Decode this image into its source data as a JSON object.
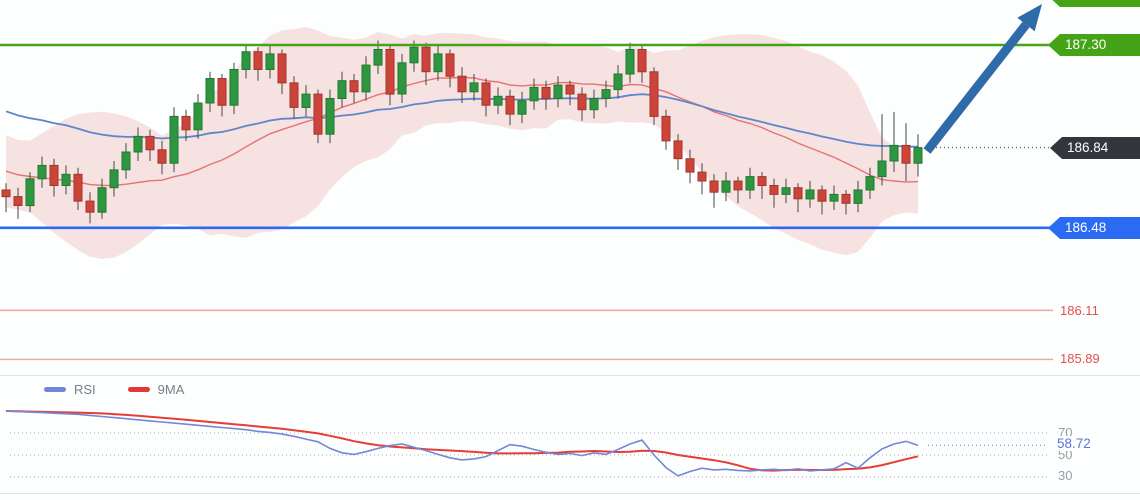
{
  "price_labels": {
    "resistance": "187.30",
    "current": "186.84",
    "support": "186.48",
    "pivot1": "186.11",
    "pivot2": "185.89"
  },
  "rsi_ui": {
    "legend": [
      {
        "label": "RSI"
      },
      {
        "label": "9MA"
      }
    ],
    "levels": {
      "overbought": "70",
      "mid": "50",
      "oversold": "30"
    },
    "current": "58.72"
  },
  "chart_data": {
    "type": "candlestick",
    "panels": [
      "price",
      "rsi"
    ],
    "colors": {
      "up": "#2e9640",
      "up_border": "#1e7b2c",
      "down": "#cc443a",
      "down_border": "#a33529",
      "wick": "#454545",
      "band": "#f3caca",
      "basis": "#e57373",
      "ema": "#5f86c8",
      "resistance": "#45a317",
      "support": "#2b6bf3",
      "current_bg": "#33363c",
      "level_line": "#f0a5a2",
      "level_text": "#e0524e",
      "rsi_line": "#7388d6",
      "rsi_ma": "#e53d38",
      "grid_dot": "#b8bcc8",
      "rsi_current_dot": "#8092d8",
      "price_dot": "#60646a",
      "divider": "#e2e4ea",
      "arrow": "#2e6ba8"
    },
    "price_panel": {
      "levels": {
        "resistance": 187.3,
        "support": 186.48,
        "pivot1": 186.11,
        "pivot2": 185.89,
        "current_price": 186.84
      },
      "bollinger": {
        "period": 20,
        "stdev_mult": 2
      },
      "ema_period": 45,
      "y_axis": {
        "visible_min": 185.7,
        "visible_max": 187.5
      },
      "candles": [
        [
          186.65,
          186.68,
          186.55,
          186.62
        ],
        [
          186.62,
          186.66,
          186.52,
          186.58
        ],
        [
          186.58,
          186.73,
          186.55,
          186.7
        ],
        [
          186.7,
          186.8,
          186.66,
          186.76
        ],
        [
          186.76,
          186.79,
          186.62,
          186.67
        ],
        [
          186.67,
          186.76,
          186.63,
          186.72
        ],
        [
          186.72,
          186.75,
          186.56,
          186.6
        ],
        [
          186.6,
          186.64,
          186.5,
          186.55
        ],
        [
          186.55,
          186.7,
          186.52,
          186.66
        ],
        [
          186.66,
          186.78,
          186.62,
          186.74
        ],
        [
          186.74,
          186.86,
          186.7,
          186.82
        ],
        [
          186.82,
          186.93,
          186.78,
          186.89
        ],
        [
          186.89,
          186.92,
          186.78,
          186.83
        ],
        [
          186.83,
          186.87,
          186.72,
          186.77
        ],
        [
          186.77,
          187.02,
          186.73,
          186.98
        ],
        [
          186.98,
          187.01,
          186.87,
          186.92
        ],
        [
          186.92,
          187.08,
          186.88,
          187.04
        ],
        [
          187.04,
          187.18,
          187.0,
          187.15
        ],
        [
          187.15,
          187.17,
          186.98,
          187.03
        ],
        [
          187.03,
          187.22,
          186.99,
          187.19
        ],
        [
          187.19,
          187.3,
          187.15,
          187.27
        ],
        [
          187.27,
          187.29,
          187.14,
          187.19
        ],
        [
          187.19,
          187.3,
          187.15,
          187.26
        ],
        [
          187.26,
          187.28,
          187.08,
          187.13
        ],
        [
          187.13,
          187.16,
          186.97,
          187.02
        ],
        [
          187.02,
          187.12,
          186.98,
          187.08
        ],
        [
          187.08,
          187.1,
          186.86,
          186.9
        ],
        [
          186.9,
          187.1,
          186.86,
          187.06
        ],
        [
          187.06,
          187.18,
          187.02,
          187.14
        ],
        [
          187.14,
          187.17,
          187.04,
          187.09
        ],
        [
          187.09,
          187.25,
          187.05,
          187.21
        ],
        [
          187.21,
          187.32,
          187.17,
          187.28
        ],
        [
          187.28,
          187.3,
          187.03,
          187.08
        ],
        [
          187.08,
          187.26,
          187.04,
          187.22
        ],
        [
          187.22,
          187.32,
          187.18,
          187.29
        ],
        [
          187.29,
          187.31,
          187.12,
          187.18
        ],
        [
          187.18,
          187.3,
          187.14,
          187.26
        ],
        [
          187.26,
          187.28,
          187.11,
          187.16
        ],
        [
          187.16,
          187.2,
          187.04,
          187.09
        ],
        [
          187.09,
          187.17,
          187.05,
          187.13
        ],
        [
          187.13,
          187.15,
          186.98,
          187.03
        ],
        [
          187.03,
          187.11,
          186.99,
          187.07
        ],
        [
          187.07,
          187.1,
          186.94,
          186.99
        ],
        [
          186.99,
          187.09,
          186.95,
          187.05
        ],
        [
          187.05,
          187.15,
          187.01,
          187.11
        ],
        [
          187.11,
          187.14,
          187.01,
          187.06
        ],
        [
          187.06,
          187.16,
          187.02,
          187.12
        ],
        [
          187.12,
          187.14,
          187.03,
          187.08
        ],
        [
          187.08,
          187.11,
          186.96,
          187.01
        ],
        [
          187.01,
          187.1,
          186.97,
          187.06
        ],
        [
          187.06,
          187.14,
          187.02,
          187.1
        ],
        [
          187.1,
          187.21,
          187.06,
          187.17
        ],
        [
          187.17,
          187.31,
          187.13,
          187.28
        ],
        [
          187.28,
          187.3,
          187.13,
          187.18
        ],
        [
          187.18,
          187.2,
          186.94,
          186.98
        ],
        [
          186.98,
          187.01,
          186.83,
          186.87
        ],
        [
          186.87,
          186.9,
          186.74,
          186.79
        ],
        [
          186.79,
          186.83,
          186.68,
          186.73
        ],
        [
          186.73,
          186.77,
          186.63,
          186.69
        ],
        [
          186.69,
          186.72,
          186.57,
          186.64
        ],
        [
          186.64,
          186.73,
          186.6,
          186.69
        ],
        [
          186.69,
          186.71,
          186.59,
          186.65
        ],
        [
          186.65,
          186.75,
          186.61,
          186.71
        ],
        [
          186.71,
          186.73,
          186.61,
          186.67
        ],
        [
          186.67,
          186.7,
          186.57,
          186.63
        ],
        [
          186.63,
          186.7,
          186.59,
          186.66
        ],
        [
          186.66,
          186.68,
          186.55,
          186.61
        ],
        [
          186.61,
          186.69,
          186.57,
          186.65
        ],
        [
          186.65,
          186.67,
          186.54,
          186.6
        ],
        [
          186.6,
          186.67,
          186.56,
          186.63
        ],
        [
          186.63,
          186.65,
          186.54,
          186.59
        ],
        [
          186.59,
          186.69,
          186.55,
          186.65
        ],
        [
          186.65,
          186.75,
          186.61,
          186.71
        ],
        [
          186.71,
          186.99,
          186.67,
          186.78
        ],
        [
          186.78,
          187.0,
          186.73,
          186.85
        ],
        [
          186.85,
          186.95,
          186.69,
          186.77
        ],
        [
          186.77,
          186.9,
          186.71,
          186.84
        ]
      ]
    },
    "rsi_panel": {
      "series_label": "RSI",
      "ma_label": "9MA",
      "ma_period": 9,
      "guide_levels": [
        70,
        50,
        30
      ],
      "current": 58.72,
      "y_axis": {
        "min": 20,
        "max": 95
      },
      "values": [
        90,
        89.5,
        89,
        88.5,
        88,
        87.5,
        87,
        86,
        85,
        84,
        83,
        82,
        81,
        80,
        79,
        78,
        77,
        76,
        75,
        74,
        73,
        71.5,
        70.5,
        69,
        67,
        64.5,
        62,
        56,
        52,
        50.5,
        53,
        56,
        58.5,
        60,
        57,
        54,
        50.5,
        47.5,
        45.5,
        46.5,
        48.5,
        54,
        59.5,
        58,
        55,
        52.5,
        50.5,
        51.5,
        49.5,
        52,
        50.5,
        55,
        60,
        63.5,
        50,
        38.5,
        31,
        35,
        38,
        36.5,
        37,
        36,
        35.5,
        36.5,
        37,
        36,
        37.5,
        35.5,
        36.5,
        37.5,
        43,
        38,
        47.5,
        55.5,
        60,
        62.5,
        58.72
      ]
    }
  }
}
